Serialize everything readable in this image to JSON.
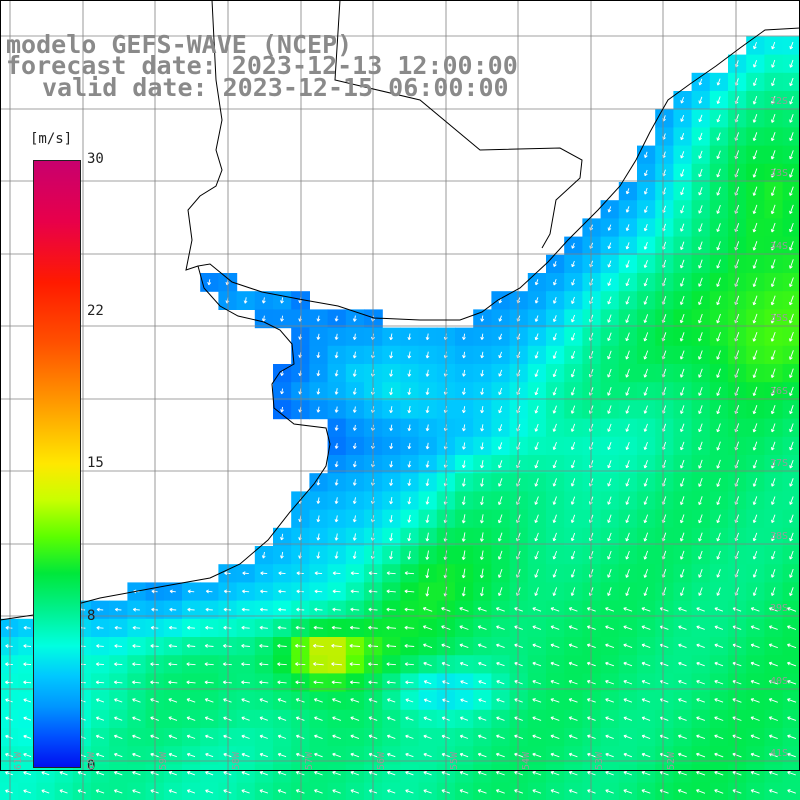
{
  "titles": {
    "line1": "modelo GEFS-WAVE (NCEP)",
    "line2": "forecast date: 2023-12-13 12:00:00",
    "line3": "valid date: 2023-12-15 06:00:00"
  },
  "colorbar": {
    "unit": "[m/s]",
    "ticks": [
      "30",
      "22",
      "15",
      "8",
      "0"
    ],
    "colors": [
      "#c8006e",
      "#ff1a00",
      "#ff9a00",
      "#ffe800",
      "#5cff00",
      "#00ffe0",
      "#0096ff",
      "#0010f0"
    ]
  },
  "lat_labels": [
    "32S",
    "33S",
    "34S",
    "35S",
    "36S",
    "37S",
    "38S",
    "39S",
    "40S",
    "41S"
  ],
  "lon_labels": [
    "61W",
    "60W",
    "59W",
    "58W",
    "57W",
    "56W",
    "55W",
    "54W",
    "53W",
    "52W"
  ],
  "colors": {
    "land": "#ffffff",
    "coastline": "#000000",
    "grid": "#808080",
    "arrows": "#ffffff",
    "title_text": "#8a8a8a"
  },
  "map_data": {
    "field": "wind speed",
    "unit": "m/s",
    "vmin": 0,
    "vmax": 30,
    "lon_range": [
      -62,
      -51
    ],
    "lat_range": [
      -31,
      -42
    ],
    "wind_direction": "from northeast",
    "max_wind_approx": 15
  }
}
